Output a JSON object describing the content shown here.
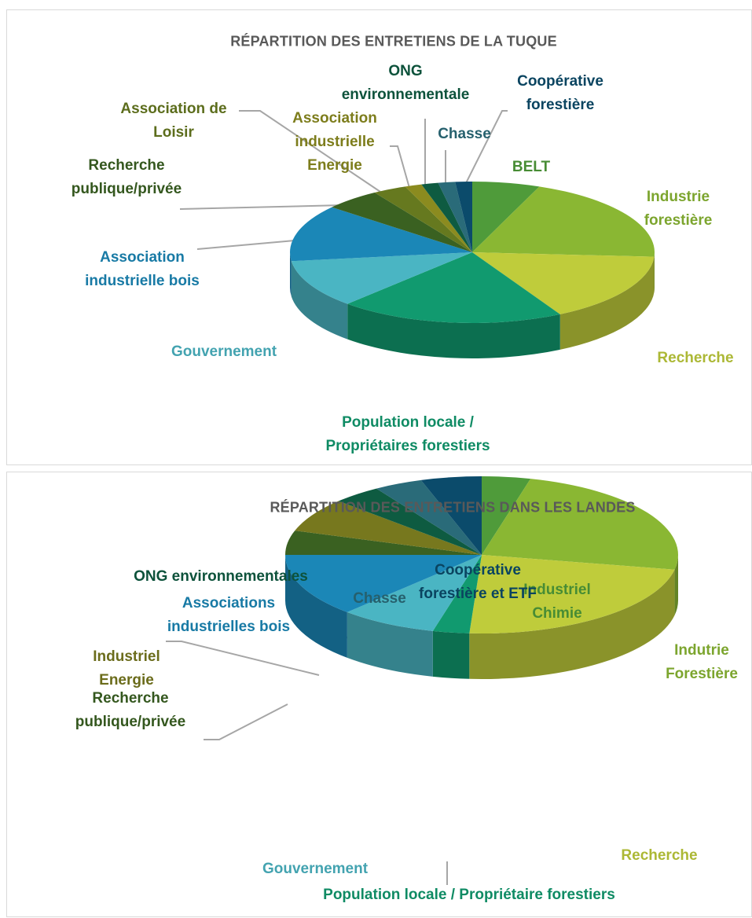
{
  "chart_data": [
    {
      "type": "pie",
      "title": "RÉPARTITION DES ENTRETIENS DE LA TUQUE",
      "categories": [
        "BELT",
        "Industrie forestière",
        "Recherche",
        "Population locale / Propriétaires forestiers",
        "Gouvernement",
        "Association industrielle bois",
        "Recherche publique/privée",
        "Association de Loisir",
        "Association industrielle Energie",
        "ONG environnementale",
        "Chasse",
        "Coopérative forestière"
      ],
      "values": [
        6,
        20,
        16,
        20,
        11,
        13,
        5,
        3,
        1.5,
        1.5,
        1.5,
        1.5
      ],
      "colors": [
        "#4f9b3a",
        "#8ab733",
        "#bfcc3b",
        "#119a6f",
        "#4ab5c3",
        "#1b87b7",
        "#3a6121",
        "#66791f",
        "#8b8b1f",
        "#0e5b41",
        "#2a6b79",
        "#0b4b6b"
      ]
    },
    {
      "type": "pie",
      "title": "RÉPARTITION DES ENTRETIENS DANS LES LANDES",
      "categories": [
        "Industriel Chimie",
        "Indutrie Forestière",
        "Recherche",
        "Population locale / Propriétaire forestiers",
        "Gouvernement",
        "Associations industrielles bois",
        "Recherche publique/privée",
        "Industriel Energie",
        "ONG environnementales",
        "Chasse",
        "Coopérative forestière et ETF"
      ],
      "values": [
        4,
        24,
        23,
        3,
        8,
        13,
        5,
        7,
        4,
        4,
        5
      ],
      "colors": [
        "#4f9b3a",
        "#8ab733",
        "#bfcc3b",
        "#119a6f",
        "#4ab5c3",
        "#1b87b7",
        "#3a6121",
        "#77781e",
        "#0e5b41",
        "#2a6b79",
        "#0b4b6b"
      ]
    }
  ]
}
